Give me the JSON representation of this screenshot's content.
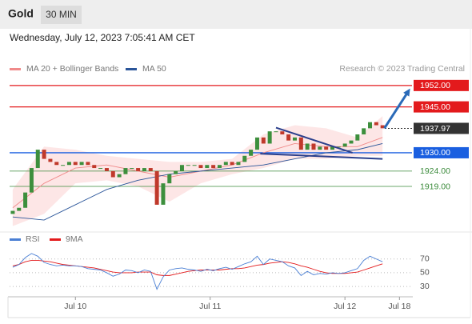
{
  "header": {
    "symbol": "Gold",
    "interval": "30 MIN",
    "timestamp": "Wednesday, July 12, 2023 7:05:41 AM CET"
  },
  "chart_data": [
    {
      "type": "candlestick",
      "credit": "Research © 2023 Trading Central",
      "xlim": [
        -0.5,
        63.7
      ],
      "ylim": [
        1906.7,
        1955.1
      ],
      "open": [
        1910,
        1911,
        1912,
        1917,
        1925,
        1931,
        1928,
        1927,
        1926,
        1926,
        1927,
        1926,
        1927,
        1926,
        1925,
        1925,
        1924,
        1922,
        1923,
        1925,
        1925,
        1924,
        1925,
        1924,
        1913,
        1920,
        1923,
        1924,
        1926,
        1926,
        1926,
        1925,
        1926,
        1925,
        1926,
        1927,
        1926,
        1927,
        1929,
        1931,
        1935,
        1933,
        1937,
        1937,
        1936,
        1934,
        1935,
        1931,
        1933,
        1931,
        1932,
        1931,
        1932,
        1932,
        1933,
        1934,
        1936,
        1938,
        1940,
        1939
      ],
      "close": [
        1911,
        1912,
        1917,
        1925,
        1931,
        1928,
        1927,
        1926,
        1926,
        1927,
        1926,
        1927,
        1926,
        1925,
        1925,
        1924,
        1922,
        1923,
        1925,
        1925,
        1924,
        1925,
        1924,
        1913,
        1920,
        1923,
        1924,
        1926,
        1926,
        1926,
        1925,
        1926,
        1925,
        1926,
        1927,
        1926,
        1927,
        1929,
        1931,
        1935,
        1933,
        1937,
        1937,
        1936,
        1934,
        1935,
        1931,
        1933,
        1931,
        1932,
        1931,
        1932,
        1932,
        1933,
        1934,
        1936,
        1938,
        1940,
        1939,
        1938
      ],
      "color_up": "#3d8f3d",
      "color_down": "#c0392b",
      "ma_x": [
        0,
        5,
        10,
        15,
        20,
        25,
        30,
        35,
        40,
        45,
        50,
        55,
        59
      ],
      "bollinger": {
        "color": "#fde0e0",
        "upper": [
          1918,
          1932,
          1931,
          1929,
          1928,
          1927,
          1927,
          1928,
          1936,
          1939,
          1938,
          1935,
          1942
        ],
        "lower": [
          1906,
          1910,
          1920,
          1921,
          1919,
          1914,
          1920,
          1923,
          1925,
          1928,
          1928,
          1929,
          1929
        ]
      },
      "series": [
        {
          "name": "MA 20 + Bollinger Bands",
          "color": "#f08a8a",
          "values": [
            1912,
            1920,
            1925,
            1926,
            1924,
            1922,
            1924,
            1926,
            1930,
            1933,
            1932,
            1932,
            1935
          ]
        },
        {
          "name": "MA 50",
          "color": "#2a5599",
          "values": [
            1909,
            1908,
            1913,
            1918,
            1921,
            1923,
            1924,
            1925,
            1926,
            1928,
            1930,
            1931,
            1933
          ]
        }
      ],
      "levels": [
        {
          "value": 1952,
          "label": "1952.00",
          "color": "#e31a1c",
          "box": true
        },
        {
          "value": 1945,
          "label": "1945.00",
          "color": "#e31a1c",
          "box": true
        },
        {
          "value": 1937.97,
          "label": "1937.97",
          "color": "#333333",
          "box": true,
          "dash": true
        },
        {
          "value": 1930,
          "label": "1930.00",
          "color": "#1a5fe0",
          "box": true
        },
        {
          "value": 1924,
          "label": "1924.00",
          "color": "#3a8a3a",
          "box": false
        },
        {
          "value": 1919,
          "label": "1919.00",
          "color": "#3a8a3a",
          "box": false
        }
      ],
      "trendlines": [
        {
          "color": "#2b3f8c",
          "points": [
            [
              42.0,
              1938.2
            ],
            [
              54.2,
              1930
            ]
          ]
        },
        {
          "color": "#2b3f8c",
          "points": [
            [
              39.5,
              1929.7
            ],
            [
              59.0,
              1928
            ]
          ]
        }
      ],
      "arrow": {
        "color": "#2a6ab8",
        "points": [
          [
            59.3,
            1938
          ],
          [
            63.4,
            1951
          ]
        ]
      }
    },
    {
      "type": "line",
      "xlim": [
        -0.5,
        63.7
      ],
      "ylim": [
        15,
        86
      ],
      "yticks": [
        30,
        50,
        70
      ],
      "xticks": [
        {
          "value": 10,
          "label": "Jul 10"
        },
        {
          "value": 31.5,
          "label": "Jul 11"
        },
        {
          "value": 53,
          "label": "Jul 12"
        },
        {
          "value": 61.7,
          "label": "Jul 18"
        }
      ],
      "series": [
        {
          "name": "RSI",
          "color": "#4a7fd4",
          "values": [
            58,
            62,
            72,
            78,
            74,
            65,
            62,
            60,
            61,
            60,
            60,
            59,
            56,
            55,
            54,
            50,
            45,
            48,
            54,
            53,
            50,
            54,
            52,
            26,
            44,
            54,
            56,
            57,
            55,
            54,
            52,
            55,
            53,
            56,
            58,
            55,
            59,
            63,
            66,
            74,
            62,
            70,
            68,
            66,
            60,
            57,
            46,
            52,
            47,
            49,
            48,
            50,
            49,
            50,
            53,
            56,
            68,
            74,
            70,
            66
          ]
        },
        {
          "name": "9MA",
          "color": "#e31a1c",
          "values": [
            60,
            62,
            66,
            68,
            68,
            67,
            66,
            64,
            62,
            61,
            60,
            59,
            58,
            57,
            55,
            53,
            51,
            50,
            50,
            50,
            51,
            51,
            51,
            47,
            46,
            46,
            48,
            50,
            52,
            53,
            54,
            54,
            54,
            54,
            55,
            56,
            56,
            57,
            59,
            61,
            62,
            64,
            65,
            66,
            65,
            63,
            60,
            58,
            55,
            52,
            50,
            49,
            49,
            49,
            50,
            51,
            54,
            57,
            60,
            63
          ]
        }
      ]
    }
  ]
}
